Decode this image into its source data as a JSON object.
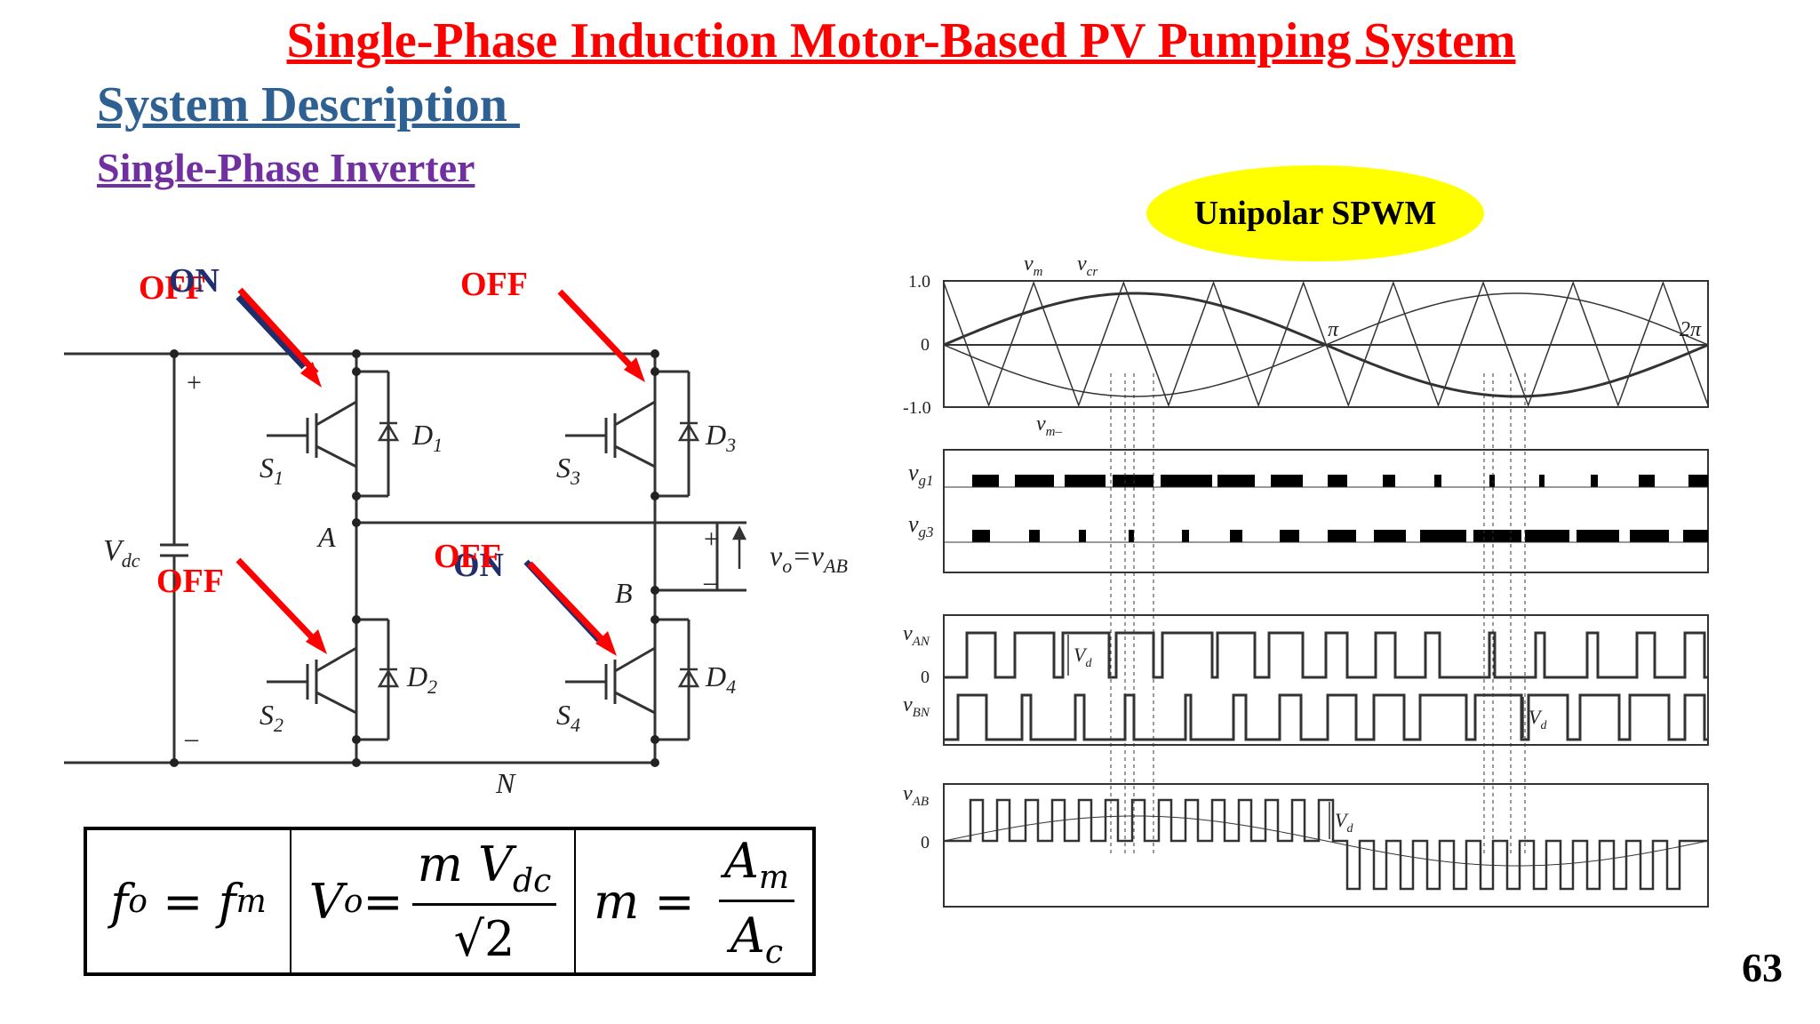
{
  "slide": {
    "title": "Single-Phase Induction Motor-Based PV Pumping System",
    "subtitle": "System Description ",
    "section": "Single-Phase Inverter",
    "badge": "Unipolar SPWM",
    "page_number": "63",
    "badge_color": "#ffff00",
    "title_color": "#ff0000",
    "subtitle_color": "#2e6191",
    "section_color": "#7030a0"
  },
  "switch_states": {
    "s1_upper": "OFF",
    "s1_lower": "ON",
    "s3": "OFF",
    "s2": "OFF",
    "s4_upper": "OFF",
    "s4_lower": "ON"
  },
  "circuit": {
    "vdc": "V",
    "vdc_sub": "dc",
    "plus": "+",
    "minus": "–",
    "node_a": "A",
    "node_b": "B",
    "node_n": "N",
    "s1": "S",
    "s1_sub": "1",
    "s2": "S",
    "s2_sub": "2",
    "s3": "S",
    "s3_sub": "3",
    "s4": "S",
    "s4_sub": "4",
    "d1": "D",
    "d1_sub": "1",
    "d2": "D",
    "d2_sub": "2",
    "d3": "D",
    "d3_sub": "3",
    "d4": "D",
    "d4_sub": "4",
    "vo_label": "v",
    "vo_sub": "o",
    "vo_eq": "=v",
    "vo_eq_sub": "AB",
    "out_plus": "+",
    "out_minus": "–"
  },
  "waveforms": {
    "y_top": "1.0",
    "y_zero": "0",
    "y_bottom": "-1.0",
    "label_vm": "v",
    "label_vm_sub": "m",
    "label_vcr": "v",
    "label_vcr_sub": "cr",
    "label_vmneg": "v",
    "label_vmneg_sub": "m–",
    "label_pi": "π",
    "label_2pi": "2π",
    "label_vg1": "v",
    "label_vg1_sub": "g1",
    "label_vg3": "v",
    "label_vg3_sub": "g3",
    "label_van": "v",
    "label_van_sub": "AN",
    "label_vbn": "v",
    "label_vbn_sub": "BN",
    "label_vab": "v",
    "label_vab_sub": "AB",
    "label_zero2": "0",
    "label_zero3": "0",
    "label_vd": "V",
    "label_vd_sub": "d"
  },
  "formulas": {
    "f_lhs": "f",
    "f_lhs_sub": "o",
    "f_eq": " = ",
    "f_rhs": "f",
    "f_rhs_sub": "m",
    "v_lhs": "V",
    "v_lhs_sub": "o",
    "v_eq": "=",
    "v_num": "m V",
    "v_num_sub": "dc",
    "v_den": "√2",
    "m_lhs": "m",
    "m_eq": " = ",
    "m_num": "A",
    "m_num_sub": "m",
    "m_den": "A",
    "m_den_sub": "c"
  }
}
